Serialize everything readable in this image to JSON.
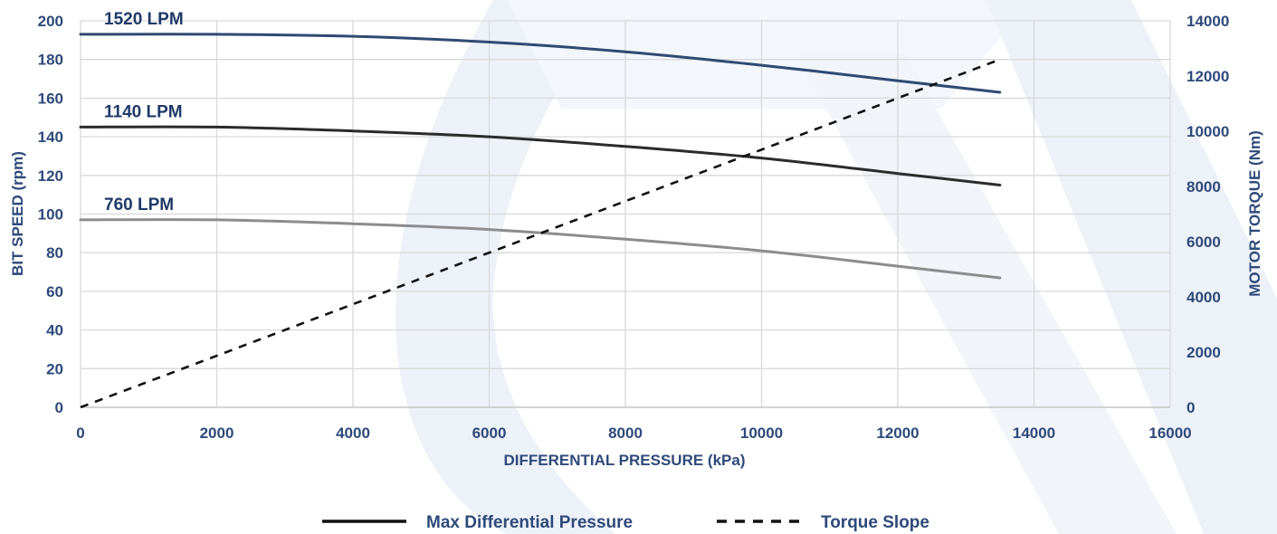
{
  "colors": {
    "axis_text": "#2e4a7a",
    "grid": "#d9d9d9",
    "watermark": "#edf1f8",
    "series_1520": "#2e4a72",
    "series_1140": "#2b2b2b",
    "series_760": "#8c8c8c",
    "torque": "#111111"
  },
  "chart_data": {
    "type": "line",
    "xlabel": "DIFFERENTIAL PRESSURE (kPa)",
    "ylabel_left": "BIT SPEED (rpm)",
    "ylabel_right": "MOTOR TORQUE (Nm)",
    "xlim": [
      0,
      16000
    ],
    "ylim_left": [
      0,
      200
    ],
    "ylim_right": [
      0,
      14000
    ],
    "x_ticks": [
      0,
      2000,
      4000,
      6000,
      8000,
      10000,
      12000,
      14000,
      16000
    ],
    "y_left_ticks": [
      0,
      20,
      40,
      60,
      80,
      100,
      120,
      140,
      160,
      180,
      200
    ],
    "y_right_ticks": [
      0,
      2000,
      4000,
      6000,
      8000,
      10000,
      12000,
      14000
    ],
    "grid": true,
    "series": [
      {
        "name": "1520 LPM",
        "axis": "left",
        "style": "solid",
        "color_key": "series_1520",
        "x": [
          0,
          2000,
          4000,
          6000,
          8000,
          10000,
          12000,
          13500
        ],
        "y": [
          193,
          193,
          192,
          189,
          184,
          177,
          169,
          163
        ]
      },
      {
        "name": "1140 LPM",
        "axis": "left",
        "style": "solid",
        "color_key": "series_1140",
        "x": [
          0,
          2000,
          4000,
          6000,
          8000,
          10000,
          12000,
          13500
        ],
        "y": [
          145,
          145,
          143,
          140,
          135,
          129,
          121,
          115
        ]
      },
      {
        "name": "760 LPM",
        "axis": "left",
        "style": "solid",
        "color_key": "series_760",
        "x": [
          0,
          2000,
          4000,
          6000,
          8000,
          10000,
          12000,
          13500
        ],
        "y": [
          97,
          97,
          95,
          92,
          87,
          81,
          73,
          67
        ]
      },
      {
        "name": "Torque Slope",
        "axis": "right",
        "style": "dashed",
        "color_key": "torque",
        "x": [
          0,
          13500
        ],
        "y": [
          0,
          12600
        ]
      }
    ],
    "legend": {
      "placement": "bottom",
      "items": [
        {
          "label": "Max Differential Pressure",
          "style": "solid"
        },
        {
          "label": "Torque Slope",
          "style": "dashed"
        }
      ]
    }
  }
}
